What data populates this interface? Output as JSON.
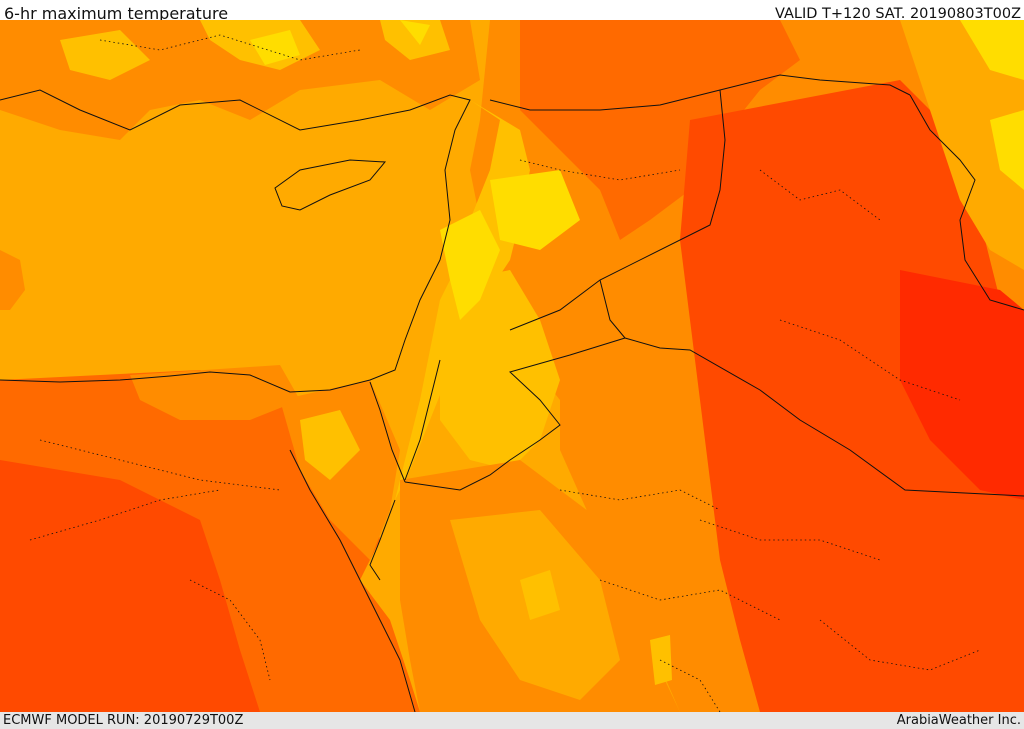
{
  "header": {
    "title": "6-hr maximum temperature",
    "valid_label": "VALID T+120 SAT. 20190803T00Z"
  },
  "footer": {
    "model_run": "ECMWF MODEL RUN: 20190729T00Z",
    "credit": "ArabiaWeather Inc."
  },
  "colors": {
    "sea": "#ffaa00",
    "band_yellow": "#ffdd00",
    "band_light_orange": "#ffc000",
    "band_orange": "#ff8c00",
    "band_dark_orange": "#ff6a00",
    "band_red_orange": "#ff4a00",
    "band_red": "#ff2a00",
    "border_line": "#111111"
  }
}
